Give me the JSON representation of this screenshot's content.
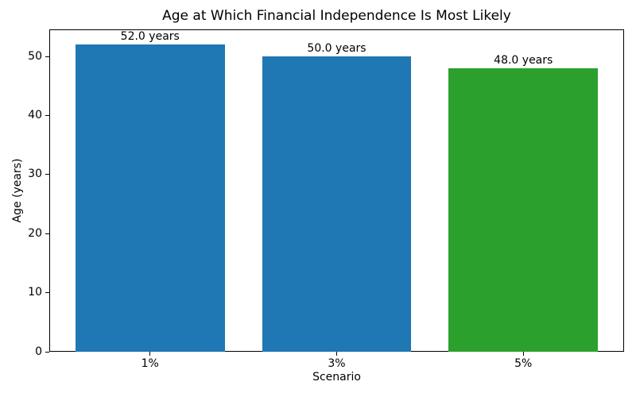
{
  "chart_data": {
    "type": "bar",
    "title": "Age at Which Financial Independence Is Most Likely",
    "xlabel": "Scenario",
    "ylabel": "Age (years)",
    "categories": [
      "1%",
      "3%",
      "5%"
    ],
    "values": [
      52.0,
      50.0,
      48.0
    ],
    "bar_labels": [
      "52.0 years",
      "50.0 years",
      "48.0 years"
    ],
    "bar_colors": [
      "#1f77b4",
      "#1f77b4",
      "#2ca02c"
    ],
    "ylim": [
      0,
      54.6
    ],
    "yticks": [
      0,
      10,
      20,
      30,
      40,
      50
    ],
    "grid": false,
    "legend": false,
    "spine_color": "#000000",
    "background_color": "#ffffff"
  }
}
